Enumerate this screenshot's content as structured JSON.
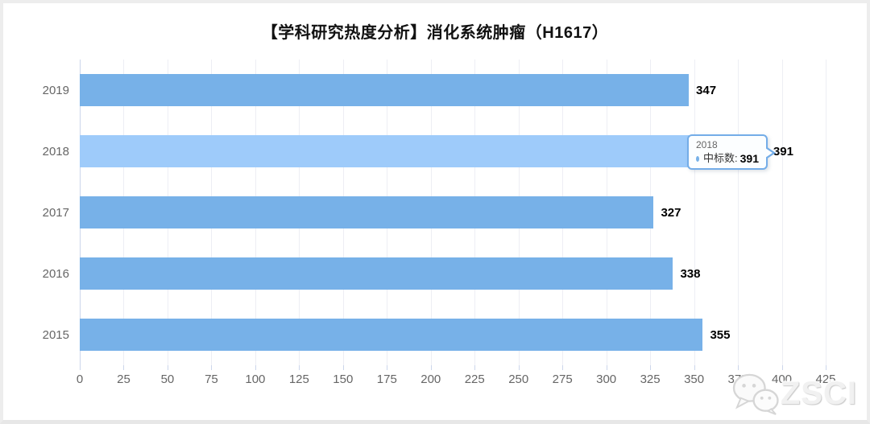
{
  "page": {
    "title": "【学科研究热度分析】消化系统肿瘤（H1617）"
  },
  "chart_data": {
    "type": "bar",
    "orientation": "horizontal",
    "title": "【学科研究热度分析】消化系统肿瘤（H1617）",
    "categories": [
      "2019",
      "2018",
      "2017",
      "2016",
      "2015"
    ],
    "series": [
      {
        "name": "中标数",
        "values": [
          347,
          391,
          327,
          338,
          355
        ]
      }
    ],
    "value_labels": [
      347,
      391,
      327,
      338,
      355
    ],
    "xlim": [
      0,
      425
    ],
    "x_ticks": [
      0,
      25,
      50,
      75,
      100,
      125,
      150,
      175,
      200,
      225,
      250,
      275,
      300,
      325,
      350,
      375,
      400,
      425
    ],
    "grid": true,
    "legend": "none",
    "highlighted_category": "2018",
    "bar_color": "#77b1e8",
    "highlight_color": "#9ecbfa",
    "axis_line_color": "#ccd6eb",
    "grid_color": "#edeef4"
  },
  "tooltip": {
    "category": "2018",
    "series_label": "中标数:",
    "value": "391",
    "marker_color": "#77b1e8"
  },
  "watermark": {
    "text": "ZSCI",
    "icon": "wechat-icon"
  }
}
